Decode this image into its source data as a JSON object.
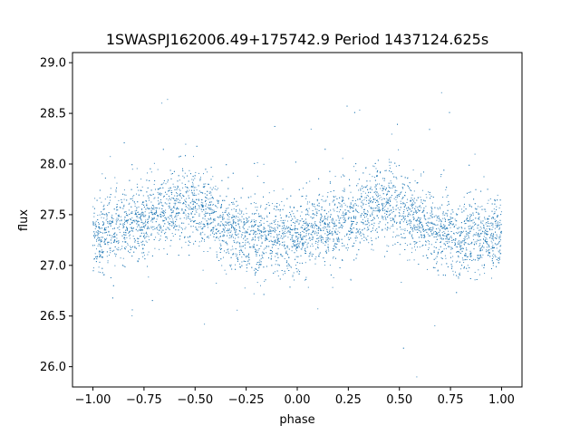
{
  "chart_data": {
    "type": "scatter",
    "title": "1SWASPJ162006.49+175742.9 Period 1437124.625s",
    "xlabel": "phase",
    "ylabel": "flux",
    "xlim": [
      -1.1,
      1.1
    ],
    "ylim": [
      25.8,
      29.1
    ],
    "xticks": [
      -1.0,
      -0.75,
      -0.5,
      -0.25,
      0.0,
      0.25,
      0.5,
      0.75,
      1.0
    ],
    "xtick_labels": [
      "−1.00",
      "−0.75",
      "−0.50",
      "−0.25",
      "0.00",
      "0.25",
      "0.50",
      "0.75",
      "1.00"
    ],
    "yticks": [
      26.0,
      26.5,
      27.0,
      27.5,
      28.0,
      28.5,
      29.0
    ],
    "ytick_labels": [
      "26.0",
      "26.5",
      "27.0",
      "27.5",
      "28.0",
      "28.5",
      "29.0"
    ],
    "grid": false,
    "marker_color": "#1f77b4",
    "series": [
      {
        "x": [
          -1.0,
          -0.95,
          -0.9,
          -0.85,
          -0.8,
          -0.75,
          -0.7,
          -0.65,
          -0.6,
          -0.55,
          -0.5,
          -0.45,
          -0.4,
          -0.35,
          -0.3,
          -0.25,
          -0.2,
          -0.15,
          -0.1,
          -0.05,
          0.0,
          0.05,
          0.1,
          0.15,
          0.2,
          0.25,
          0.3,
          0.35,
          0.4,
          0.45,
          0.5,
          0.55,
          0.6,
          0.65,
          0.7,
          0.75,
          0.8,
          0.85,
          0.9,
          0.95,
          1.0
        ],
        "y": [
          27.3,
          27.32,
          27.35,
          27.38,
          27.4,
          27.45,
          27.5,
          27.55,
          27.6,
          27.62,
          27.58,
          27.52,
          27.45,
          27.38,
          27.32,
          27.3,
          27.28,
          27.27,
          27.28,
          27.28,
          27.3,
          27.32,
          27.35,
          27.38,
          27.4,
          27.45,
          27.5,
          27.55,
          27.6,
          27.62,
          27.58,
          27.52,
          27.45,
          27.38,
          27.32,
          27.3,
          27.28,
          27.27,
          27.28,
          27.28,
          27.3
        ]
      }
    ]
  }
}
